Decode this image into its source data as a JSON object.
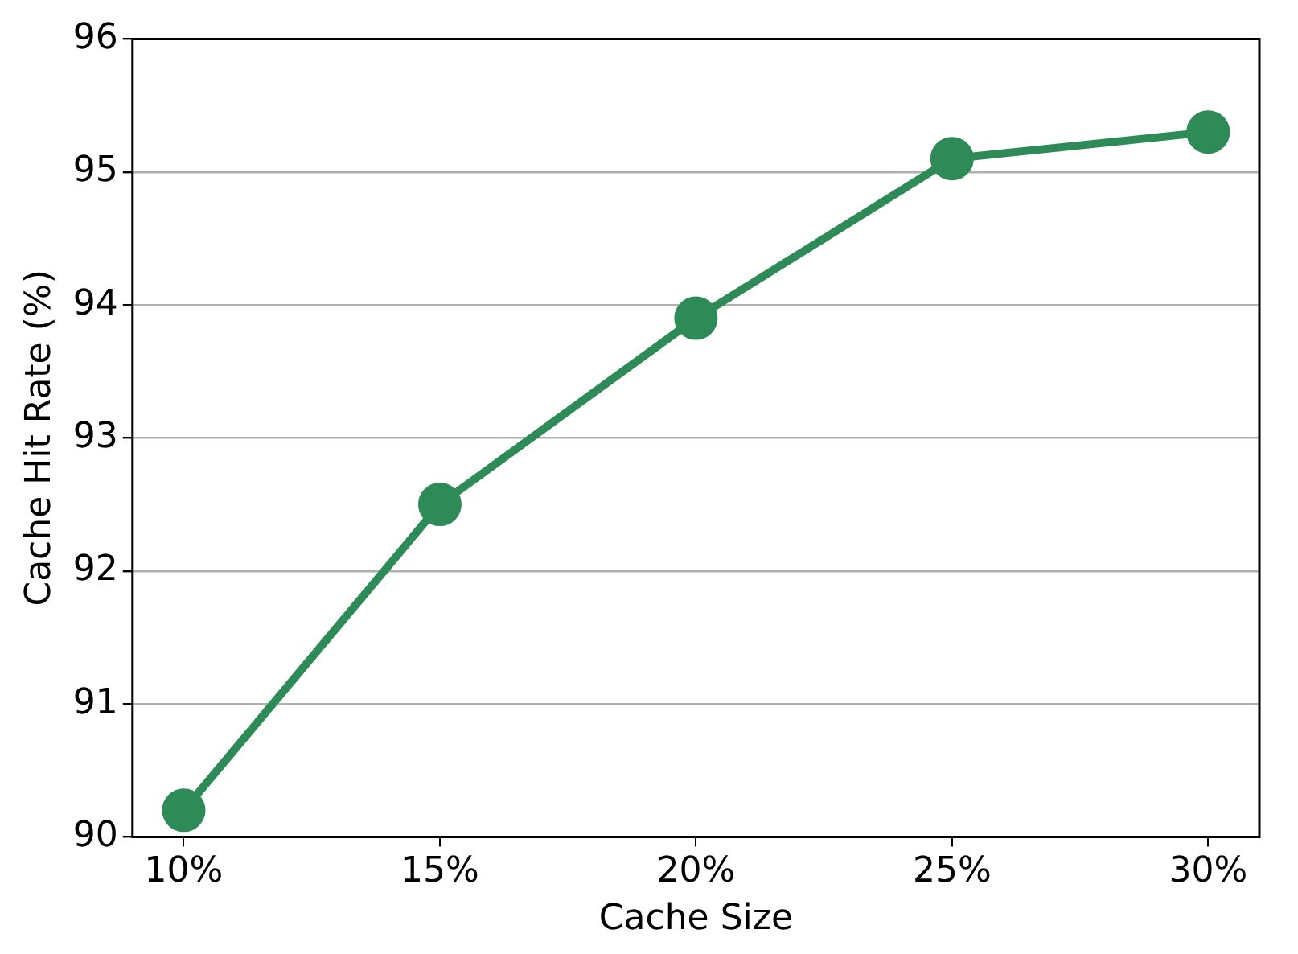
{
  "chart_data": {
    "type": "line",
    "xlabel": "Cache Size",
    "ylabel": "Cache Hit Rate (%)",
    "categories": [
      "10%",
      "15%",
      "20%",
      "25%",
      "30%"
    ],
    "series": [
      {
        "color": "#2e8b57",
        "values": [
          90.2,
          92.5,
          93.9,
          95.1,
          95.3
        ]
      }
    ],
    "ylim": [
      90,
      96
    ],
    "yticks": [
      90,
      91,
      92,
      93,
      94,
      95,
      96
    ],
    "grid": "y",
    "marker": "circle",
    "line_style": "solid",
    "legend": false
  }
}
